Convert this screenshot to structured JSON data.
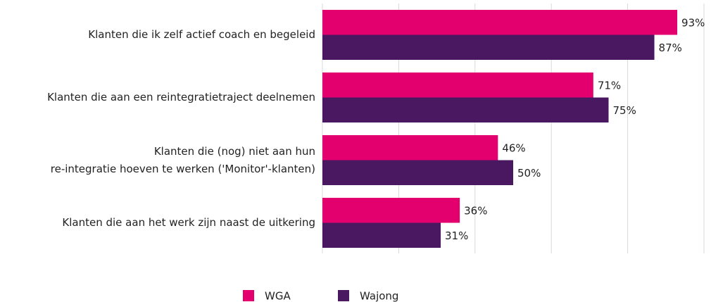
{
  "chart_data": {
    "type": "barh",
    "categories": [
      "Klanten die ik zelf actief coach en begeleid",
      "Klanten die aan een reintegratietraject deelnemen",
      "Klanten die (nog) niet aan hun\nre-integratie hoeven te werken ('Monitor'-klanten)",
      "Klanten die aan het werk zijn naast de uitkering"
    ],
    "series": [
      {
        "name": "WGA",
        "color": "#e3006e",
        "values": [
          93,
          71,
          46,
          36
        ],
        "value_labels": [
          "93%",
          "71%",
          "46%",
          "36%"
        ]
      },
      {
        "name": "Wajong",
        "color": "#4a1761",
        "values": [
          87,
          75,
          50,
          31
        ],
        "value_labels": [
          "87%",
          "75%",
          "50%",
          "31%"
        ]
      }
    ],
    "xlim": [
      0,
      100
    ],
    "xticks": [
      0,
      20,
      40,
      60,
      80,
      100
    ],
    "grid": true
  }
}
